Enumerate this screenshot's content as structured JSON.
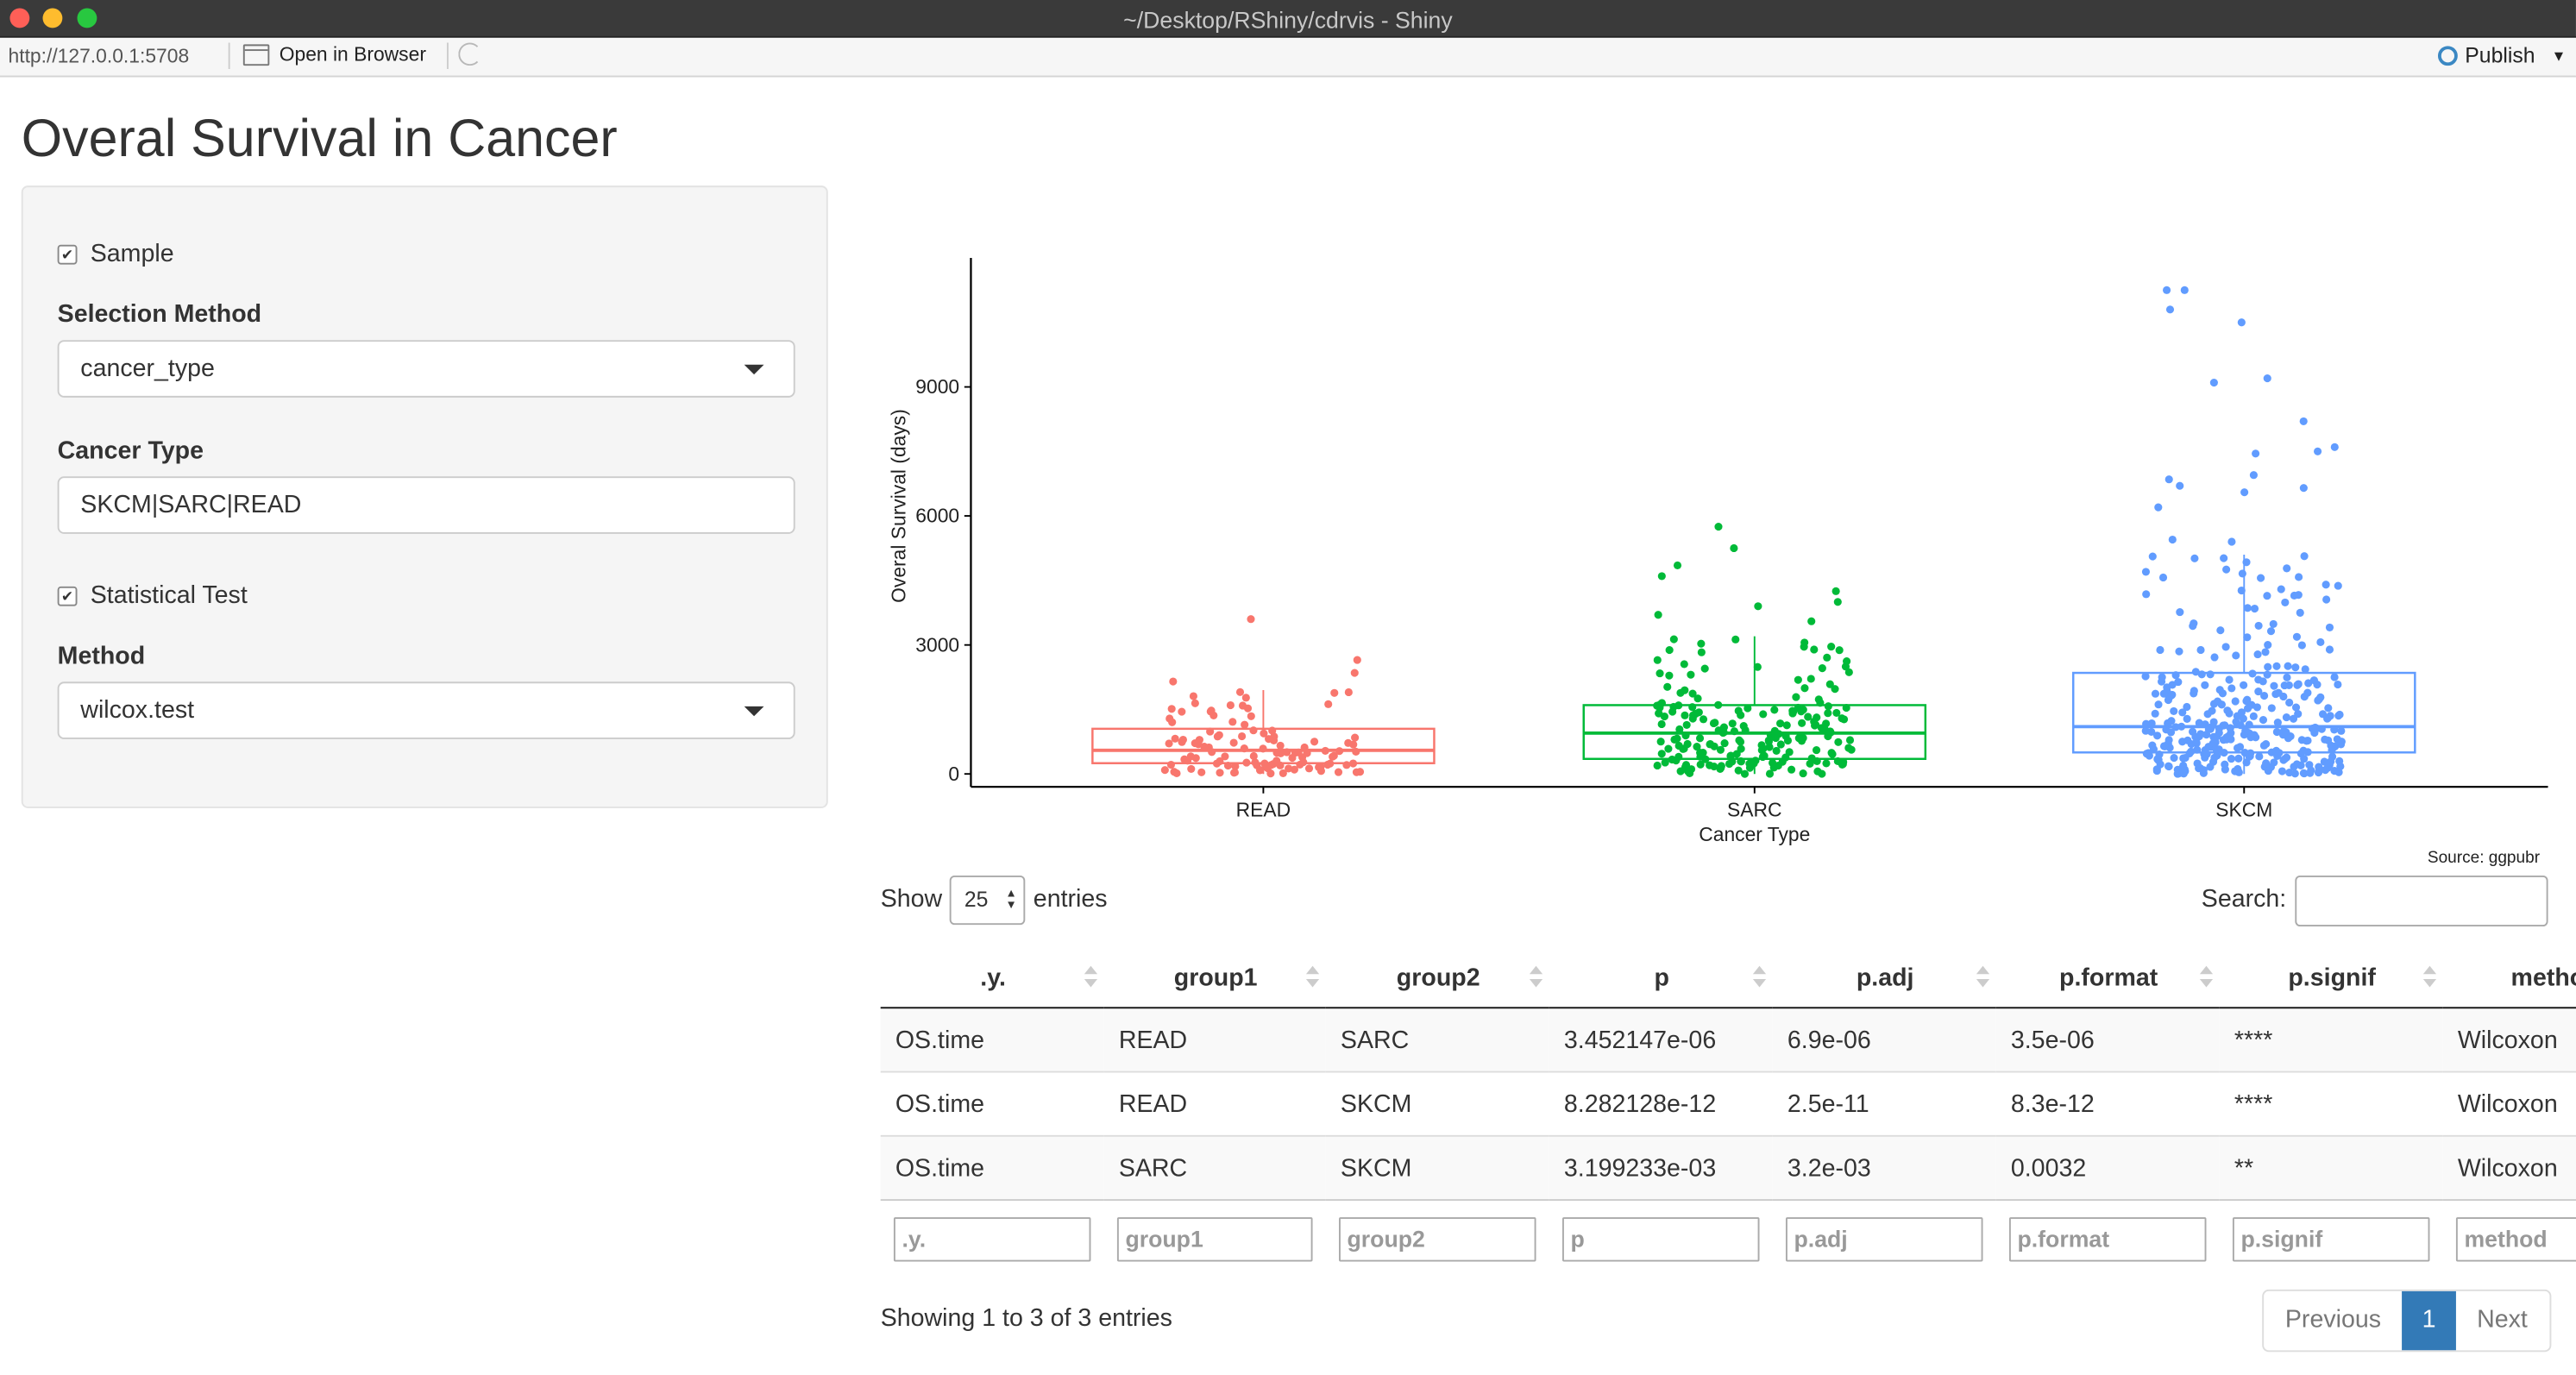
{
  "window": {
    "title": "~/Desktop/RShiny/cdrvis - Shiny"
  },
  "toolbar": {
    "url": "http://127.0.0.1:5708",
    "open_browser": "Open in Browser",
    "publish": "Publish"
  },
  "app": {
    "title": "Overal Survival in Cancer",
    "sidebar": {
      "sample_label": "Sample",
      "sample_checked": true,
      "selection_method_label": "Selection Method",
      "selection_method_value": "cancer_type",
      "cancer_type_label": "Cancer Type",
      "cancer_type_value": "SKCM|SARC|READ",
      "stat_test_label": "Statistical Test",
      "stat_test_checked": true,
      "method_label": "Method",
      "method_value": "wilcox.test"
    },
    "plot_caption": "Source: ggpubr"
  },
  "chart_data": {
    "type": "box",
    "xlabel": "Cancer Type",
    "ylabel": "Overal Survival (days)",
    "categories": [
      "READ",
      "SARC",
      "SKCM"
    ],
    "yticks": [
      0,
      3000,
      6000,
      9000
    ],
    "ylim": [
      -300,
      12000
    ],
    "caption": "Source: ggpubr",
    "colors": {
      "READ": "#f8766d",
      "SARC": "#00ba38",
      "SKCM": "#619cff"
    },
    "boxes": [
      {
        "category": "READ",
        "q1": 250,
        "median": 550,
        "q3": 1050,
        "whisker_low": 0,
        "whisker_high": 1950
      },
      {
        "category": "SARC",
        "q1": 350,
        "median": 950,
        "q3": 1600,
        "whisker_low": 0,
        "whisker_high": 3200
      },
      {
        "category": "SKCM",
        "q1": 500,
        "median": 1100,
        "q3": 2350,
        "whisker_low": 0,
        "whisker_high": 5100
      }
    ],
    "outliers": [
      {
        "category": "READ",
        "values": [
          3600,
          2650,
          2350,
          2150,
          1900
        ]
      },
      {
        "category": "SARC",
        "values": [
          5750,
          5250,
          4850,
          4600,
          4250,
          4000,
          3900,
          3700,
          3550
        ]
      },
      {
        "category": "SKCM",
        "values": [
          11250,
          11250,
          10800,
          10500,
          9200,
          9100,
          8200,
          7600,
          7500,
          7450,
          6950,
          6850,
          6700,
          6650,
          6550,
          6200,
          5450,
          5400
        ]
      }
    ]
  },
  "table": {
    "length_label_before": "Show",
    "length_value": "25",
    "length_label_after": "entries",
    "search_label": "Search:",
    "columns": [
      ".y.",
      "group1",
      "group2",
      "p",
      "p.adj",
      "p.format",
      "p.signif",
      "method"
    ],
    "rows": [
      [
        ".OS.time",
        "READ",
        "SARC",
        "3.452147e-06",
        "6.9e-06",
        "3.5e-06",
        "****",
        "Wilcoxon"
      ],
      [
        "OS.time",
        "READ",
        "SKCM",
        "8.282128e-12",
        "2.5e-11",
        "8.3e-12",
        "****",
        "Wilcoxon"
      ],
      [
        "OS.time",
        "SARC",
        "SKCM",
        "3.199233e-03",
        "3.2e-03",
        "0.0032",
        "**",
        "Wilcoxon"
      ]
    ],
    "filters": [
      ".y.",
      "group1",
      "group2",
      "p",
      "p.adj",
      "p.format",
      "p.signif",
      "method"
    ],
    "info": "Showing 1 to 3 of 3 entries",
    "pager": {
      "previous": "Previous",
      "current": "1",
      "next": "Next"
    }
  }
}
